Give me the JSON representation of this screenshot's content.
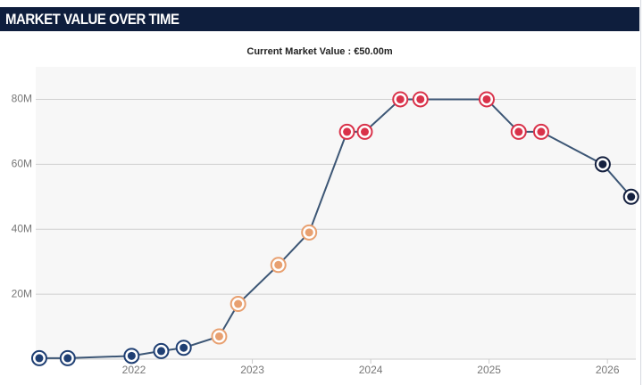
{
  "chart_data": {
    "type": "line",
    "title": "MARKET VALUE OVER TIME",
    "subtitle": "Current Market Value : €50.00m",
    "x": [
      2021.2,
      2021.44,
      2021.98,
      2022.23,
      2022.42,
      2022.72,
      2022.88,
      2023.22,
      2023.48,
      2023.8,
      2023.95,
      2024.25,
      2024.42,
      2024.98,
      2025.25,
      2025.44,
      2025.96,
      2026.2
    ],
    "series": [
      {
        "color": "#3c5675",
        "values": [
          0.3,
          0.3,
          1,
          2.5,
          3.5,
          7,
          17,
          29,
          39,
          70,
          70,
          80,
          80,
          80,
          70,
          70,
          60,
          50
        ]
      }
    ],
    "point_colors": [
      "#1f3f73",
      "#1f3f73",
      "#1f3f73",
      "#1f3f73",
      "#1f3f73",
      "#e8a070",
      "#e8a070",
      "#e8a070",
      "#e8a070",
      "#d9324a",
      "#d9324a",
      "#d9324a",
      "#d9324a",
      "#d9324a",
      "#d9324a",
      "#d9324a",
      "#14203f",
      "#14203f"
    ],
    "xlim": [
      2021.17,
      2026.24
    ],
    "xticks": [
      2022,
      2023,
      2024,
      2025,
      2026
    ],
    "ylim": [
      0,
      90
    ],
    "yticks": [
      {
        "value": 20,
        "label": "20M"
      },
      {
        "value": 40,
        "label": "40M"
      },
      {
        "value": 60,
        "label": "60M"
      },
      {
        "value": 80,
        "label": "80M"
      }
    ],
    "grid": true
  }
}
